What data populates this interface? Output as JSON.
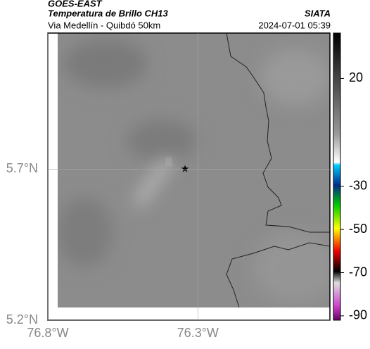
{
  "header": {
    "title": "GOES-EAST",
    "subtitle": "Temperatura de Brillo CH13",
    "location": "Via Medellín - Quibdó 50km",
    "source": "SIATA",
    "datetime": "2024-07-01 05:39"
  },
  "map": {
    "xlim": [
      -76.8,
      -75.86
    ],
    "ylim": [
      5.2,
      6.15
    ],
    "xticks": [
      {
        "value": -76.8,
        "label": "76.8°W"
      },
      {
        "value": -76.3,
        "label": "76.3°W"
      }
    ],
    "yticks": [
      {
        "value": 5.7,
        "label": "5.7°N"
      },
      {
        "value": 5.2,
        "label": "5.2°N"
      }
    ]
  },
  "colorbar": {
    "lim": [
      -92,
      41
    ],
    "ticks": [
      20,
      -30,
      -50,
      -70,
      -90
    ]
  }
}
